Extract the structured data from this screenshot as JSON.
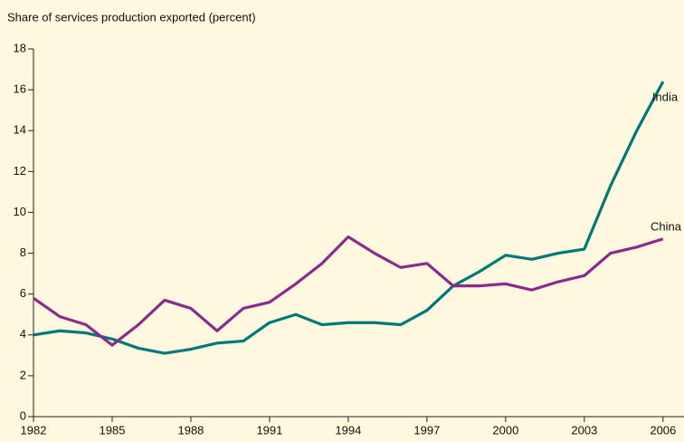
{
  "chart_data": {
    "type": "line",
    "title": "Share of services production exported (percent)",
    "x": [
      1982,
      1983,
      1984,
      1985,
      1986,
      1987,
      1988,
      1989,
      1990,
      1991,
      1992,
      1993,
      1994,
      1995,
      1996,
      1997,
      1998,
      1999,
      2000,
      2001,
      2002,
      2003,
      2004,
      2005,
      2006
    ],
    "series": [
      {
        "name": "India",
        "color": "#00787a",
        "values": [
          4.0,
          4.2,
          4.1,
          3.8,
          3.35,
          3.1,
          3.3,
          3.6,
          3.7,
          4.6,
          5.0,
          4.5,
          4.6,
          4.6,
          4.5,
          5.2,
          6.4,
          7.1,
          7.9,
          7.7,
          8.0,
          8.2,
          11.3,
          14.0,
          16.4
        ]
      },
      {
        "name": "China",
        "color": "#8d2a8e",
        "values": [
          5.8,
          4.9,
          4.5,
          3.5,
          4.5,
          5.7,
          5.3,
          4.2,
          5.3,
          5.6,
          6.5,
          7.5,
          8.8,
          8.0,
          7.3,
          7.5,
          6.4,
          6.4,
          6.5,
          6.2,
          6.6,
          6.9,
          8.0,
          8.3,
          8.7
        ]
      }
    ],
    "xlim": [
      1982,
      2006.8
    ],
    "xticks": [
      1982,
      1985,
      1988,
      1991,
      1994,
      1997,
      2000,
      2003,
      2006
    ],
    "ylim": [
      0,
      18
    ],
    "yticks": [
      0,
      2,
      4,
      6,
      8,
      10,
      12,
      14,
      16,
      18
    ],
    "grid": false
  }
}
